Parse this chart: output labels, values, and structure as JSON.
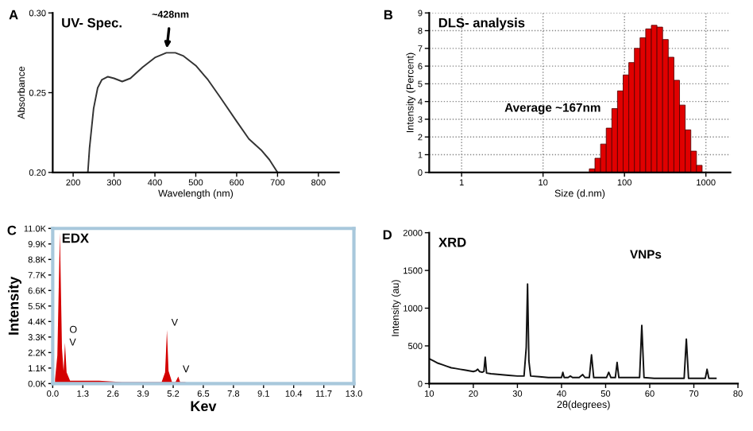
{
  "chart_data": [
    {
      "type": "line",
      "title": "UV- Spec.",
      "xlabel": "Wavelength (nm)",
      "ylabel": "Absorbance",
      "xlim": [
        150,
        850
      ],
      "ylim": [
        0.2,
        0.3
      ],
      "xticks": [
        200,
        300,
        400,
        500,
        600,
        700,
        800
      ],
      "yticks": [
        {
          "value": 0.2,
          "label": "0.20"
        },
        {
          "value": 0.25,
          "label": "0.25"
        },
        {
          "value": 0.3,
          "label": "0.30"
        }
      ],
      "grid": false,
      "legend": false,
      "annotations": [
        "A",
        {
          "text": "~428nm",
          "x": 428,
          "y": 0.275
        }
      ],
      "series": [
        {
          "color": "#333333",
          "x": [
            236,
            240,
            250,
            260,
            270,
            285,
            300,
            320,
            340,
            370,
            400,
            428,
            450,
            470,
            500,
            530,
            560,
            600,
            630,
            660,
            680,
            700
          ],
          "values": [
            0.2,
            0.215,
            0.24,
            0.253,
            0.258,
            0.26,
            0.259,
            0.257,
            0.259,
            0.266,
            0.272,
            0.275,
            0.275,
            0.273,
            0.267,
            0.258,
            0.247,
            0.232,
            0.221,
            0.214,
            0.208,
            0.2
          ]
        }
      ]
    },
    {
      "type": "histogram",
      "title": "DLS- analysis",
      "xlabel": "Size (d.nm)",
      "ylabel": "Intensity (Percent)",
      "log": "x",
      "xlim": [
        0.4,
        2000
      ],
      "ylim": [
        0,
        9
      ],
      "xticks": [
        1,
        10,
        100,
        1000
      ],
      "yticks": [
        0,
        1,
        2,
        3,
        4,
        5,
        6,
        7,
        8,
        9
      ],
      "grid": true,
      "legend": false,
      "annotations": [
        "B",
        "Average ~167nm"
      ],
      "bins": [
        37,
        43.4,
        50.9,
        59.7,
        70,
        82.1,
        96.3,
        113,
        132.5,
        155.4,
        182.3,
        213.8,
        250.8,
        294.2,
        345,
        404.7,
        474.7,
        556.8,
        653.1,
        766,
        898.5
      ],
      "series": [
        {
          "color": "#e00000",
          "values": [
            0.2,
            0.8,
            1.6,
            2.5,
            3.6,
            4.6,
            5.5,
            6.2,
            7.0,
            7.6,
            8.1,
            8.3,
            8.2,
            7.5,
            6.5,
            5.2,
            3.8,
            2.4,
            1.2,
            0.4
          ]
        }
      ]
    },
    {
      "type": "area",
      "title": "EDX",
      "xlabel": "Kev",
      "ylabel": "Intensity",
      "xlim": [
        0,
        13
      ],
      "ylim": [
        0,
        11000
      ],
      "xticks": [
        {
          "value": 0,
          "label": "0.0"
        },
        1.3,
        2.6,
        3.9,
        5.2,
        6.5,
        7.8,
        9.1,
        10.4,
        11.7,
        {
          "value": 13,
          "label": "13.0"
        }
      ],
      "yticks": [
        {
          "value": 0,
          "label": "0.0K"
        },
        {
          "value": 1100,
          "label": "1.1K"
        },
        {
          "value": 2200,
          "label": "2.2K"
        },
        {
          "value": 3300,
          "label": "3.3K"
        },
        {
          "value": 4400,
          "label": "4.4K"
        },
        {
          "value": 5500,
          "label": "5.5K"
        },
        {
          "value": 6600,
          "label": "6.6K"
        },
        {
          "value": 7700,
          "label": "7.7K"
        },
        {
          "value": 8800,
          "label": "8.8K"
        },
        {
          "value": 9900,
          "label": "9.9K"
        },
        {
          "value": 11000,
          "label": "11.0K"
        }
      ],
      "grid": false,
      "legend": false,
      "annotations": [
        "C",
        {
          "text": "O",
          "x": 0.53,
          "y": 3300
        },
        {
          "text": "V",
          "x": 0.53,
          "y": 2400
        },
        {
          "text": "V",
          "x": 4.93,
          "y": 3800
        },
        {
          "text": "V",
          "x": 5.42,
          "y": 500
        }
      ],
      "series": [
        {
          "color": "#d40000",
          "x": [
            0.1,
            0.2,
            0.31,
            0.4,
            0.47,
            0.53,
            0.6,
            0.75,
            1,
            1.5,
            2,
            3,
            4,
            4.7,
            4.85,
            4.93,
            5.0,
            5.15,
            5.3,
            5.42,
            5.5,
            5.7,
            6,
            8,
            10,
            13
          ],
          "values": [
            300,
            2000,
            10700,
            2500,
            900,
            2900,
            800,
            200,
            200,
            200,
            200,
            100,
            100,
            100,
            800,
            3800,
            900,
            100,
            100,
            500,
            100,
            100,
            0,
            0,
            0,
            0
          ]
        }
      ]
    },
    {
      "type": "line",
      "title": "XRD",
      "xlabel": "2θ(degrees)",
      "ylabel": "Intensity (au)",
      "xlim": [
        10,
        80
      ],
      "ylim": [
        0,
        2000
      ],
      "xticks": [
        10,
        20,
        30,
        40,
        50,
        60,
        70,
        80
      ],
      "yticks": [
        0,
        500,
        1000,
        1500,
        2000
      ],
      "grid": false,
      "legend": false,
      "annotations": [
        "D",
        "VNPs"
      ],
      "series": [
        {
          "color": "#111111",
          "x": [
            10,
            11,
            12,
            13,
            14,
            15,
            16,
            17,
            18,
            19,
            20,
            20.6,
            21,
            21.4,
            22,
            22.4,
            22.7,
            23,
            24,
            26,
            28,
            30,
            31.5,
            32,
            32.3,
            32.6,
            33,
            35,
            37,
            39,
            40,
            40.3,
            40.6,
            41.5,
            42,
            42.5,
            44,
            44.8,
            45.3,
            46.3,
            46.8,
            47.3,
            49,
            50.2,
            50.7,
            51.2,
            52.2,
            52.6,
            53,
            55,
            57.7,
            58.2,
            58.7,
            61,
            64,
            67.8,
            68.3,
            68.8,
            71,
            72.6,
            73,
            73.4,
            74,
            75
          ],
          "values": [
            330,
            300,
            270,
            250,
            230,
            210,
            200,
            190,
            180,
            170,
            160,
            170,
            190,
            160,
            150,
            160,
            350,
            140,
            130,
            120,
            110,
            100,
            100,
            480,
            1320,
            300,
            100,
            90,
            80,
            80,
            80,
            150,
            80,
            80,
            100,
            80,
            80,
            120,
            80,
            80,
            380,
            80,
            80,
            80,
            150,
            80,
            80,
            280,
            80,
            80,
            80,
            770,
            80,
            70,
            70,
            70,
            590,
            70,
            70,
            70,
            190,
            70,
            70,
            70
          ]
        }
      ]
    }
  ]
}
